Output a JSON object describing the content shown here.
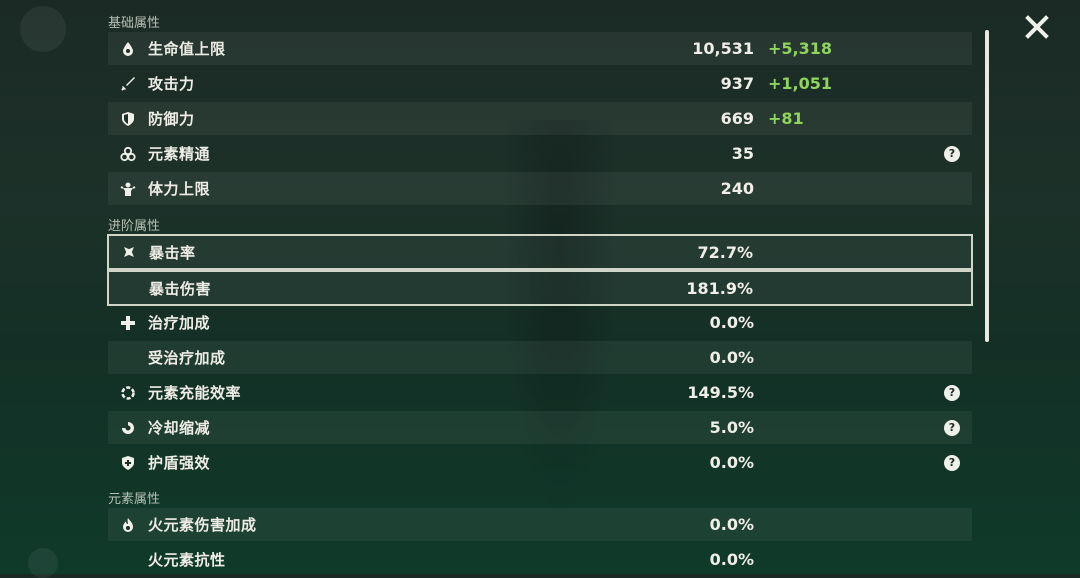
{
  "sections": {
    "base": "基础属性",
    "advanced": "进阶属性",
    "elemental": "元素属性"
  },
  "base_rows": [
    {
      "label": "生命值上限",
      "value": "10,531",
      "bonus": "+5,318",
      "icon": "hp-drop-icon"
    },
    {
      "label": "攻击力",
      "value": "937",
      "bonus": "+1,051",
      "icon": "sword-icon"
    },
    {
      "label": "防御力",
      "value": "669",
      "bonus": "+81",
      "icon": "shield-icon"
    },
    {
      "label": "元素精通",
      "value": "35",
      "bonus": "",
      "icon": "elemental-mastery-icon",
      "help": "?"
    },
    {
      "label": "体力上限",
      "value": "240",
      "bonus": "",
      "icon": "stamina-icon"
    }
  ],
  "advanced_rows": [
    {
      "label": "暴击率",
      "value": "72.7%",
      "icon": "crit-rate-icon"
    },
    {
      "label": "暴击伤害",
      "value": "181.9%",
      "icon": ""
    },
    {
      "label": "治疗加成",
      "value": "0.0%",
      "icon": "healing-cross-icon"
    },
    {
      "label": "受治疗加成",
      "value": "0.0%",
      "icon": ""
    },
    {
      "label": "元素充能效率",
      "value": "149.5%",
      "icon": "energy-recharge-icon",
      "help": "?"
    },
    {
      "label": "冷却缩减",
      "value": "5.0%",
      "icon": "cooldown-icon",
      "help": "?"
    },
    {
      "label": "护盾强效",
      "value": "0.0%",
      "icon": "shield-strength-icon",
      "help": "?"
    }
  ],
  "elemental_rows": [
    {
      "label": "火元素伤害加成",
      "value": "0.0%",
      "icon": "pyro-icon"
    },
    {
      "label": "火元素抗性",
      "value": "0.0%",
      "icon": ""
    }
  ],
  "colors": {
    "bonus_green": "#8fd45c",
    "row_highlight": "#cfd6c8"
  }
}
